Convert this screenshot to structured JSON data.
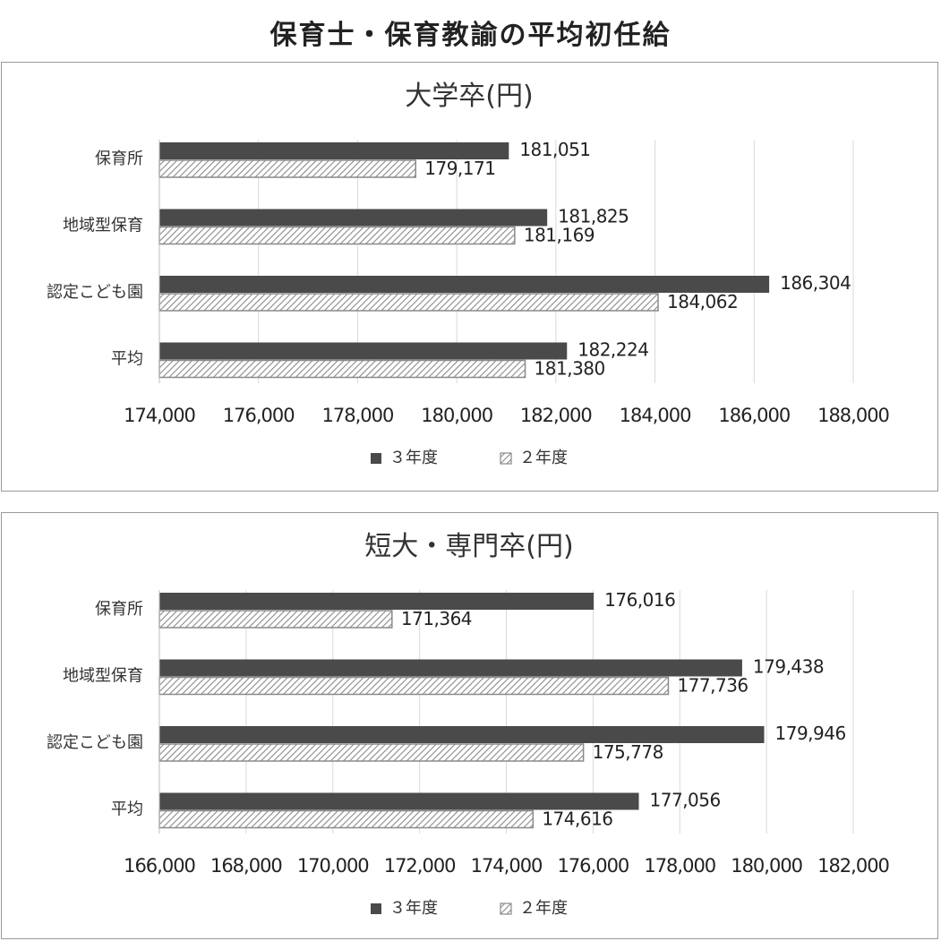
{
  "page": {
    "title": "保育士・保育教諭の平均初任給"
  },
  "colors": {
    "series_3": "#4a4a4a",
    "series_2_hatch": "#8a8a8a",
    "grid": "#d9d9d9",
    "border": "#9a9a9a"
  },
  "chart_data": [
    {
      "type": "bar",
      "orientation": "horizontal",
      "title": "大学卒(円)",
      "categories": [
        "保育所",
        "地域型保育",
        "認定こども園",
        "平均"
      ],
      "series": [
        {
          "name": "３年度",
          "values": [
            181051,
            181825,
            186304,
            182224
          ],
          "style": "solid-dark"
        },
        {
          "name": "２年度",
          "values": [
            179171,
            181169,
            184062,
            181380
          ],
          "style": "hatched"
        }
      ],
      "value_labels": {
        "３年度": [
          "181,051",
          "181,825",
          "186,304",
          "182,224"
        ],
        "２年度": [
          "179,171",
          "181,169",
          "184,062",
          "181,380"
        ]
      },
      "xlim": [
        174000,
        188000
      ],
      "xticks": [
        174000,
        176000,
        178000,
        180000,
        182000,
        184000,
        186000,
        188000
      ],
      "xtick_labels": [
        "174,000",
        "176,000",
        "178,000",
        "180,000",
        "182,000",
        "184,000",
        "186,000",
        "188,000"
      ],
      "grid": "vertical",
      "legend": "bottom",
      "legend_entries": [
        "３年度",
        "２年度"
      ]
    },
    {
      "type": "bar",
      "orientation": "horizontal",
      "title": "短大・専門卒(円)",
      "categories": [
        "保育所",
        "地域型保育",
        "認定こども園",
        "平均"
      ],
      "series": [
        {
          "name": "３年度",
          "values": [
            176016,
            179438,
            179946,
            177056
          ],
          "style": "solid-dark"
        },
        {
          "name": "２年度",
          "values": [
            171364,
            177736,
            175778,
            174616
          ],
          "style": "hatched"
        }
      ],
      "value_labels": {
        "３年度": [
          "176,016",
          "179,438",
          "179,946",
          "177,056"
        ],
        "２年度": [
          "171,364",
          "177,736",
          "175,778",
          "174,616"
        ]
      },
      "xlim": [
        166000,
        182000
      ],
      "xticks": [
        166000,
        168000,
        170000,
        172000,
        174000,
        176000,
        178000,
        180000,
        182000
      ],
      "xtick_labels": [
        "166,000",
        "168,000",
        "170,000",
        "172,000",
        "174,000",
        "176,000",
        "178,000",
        "180,000",
        "182,000"
      ],
      "grid": "vertical",
      "legend": "bottom",
      "legend_entries": [
        "３年度",
        "２年度"
      ]
    }
  ]
}
